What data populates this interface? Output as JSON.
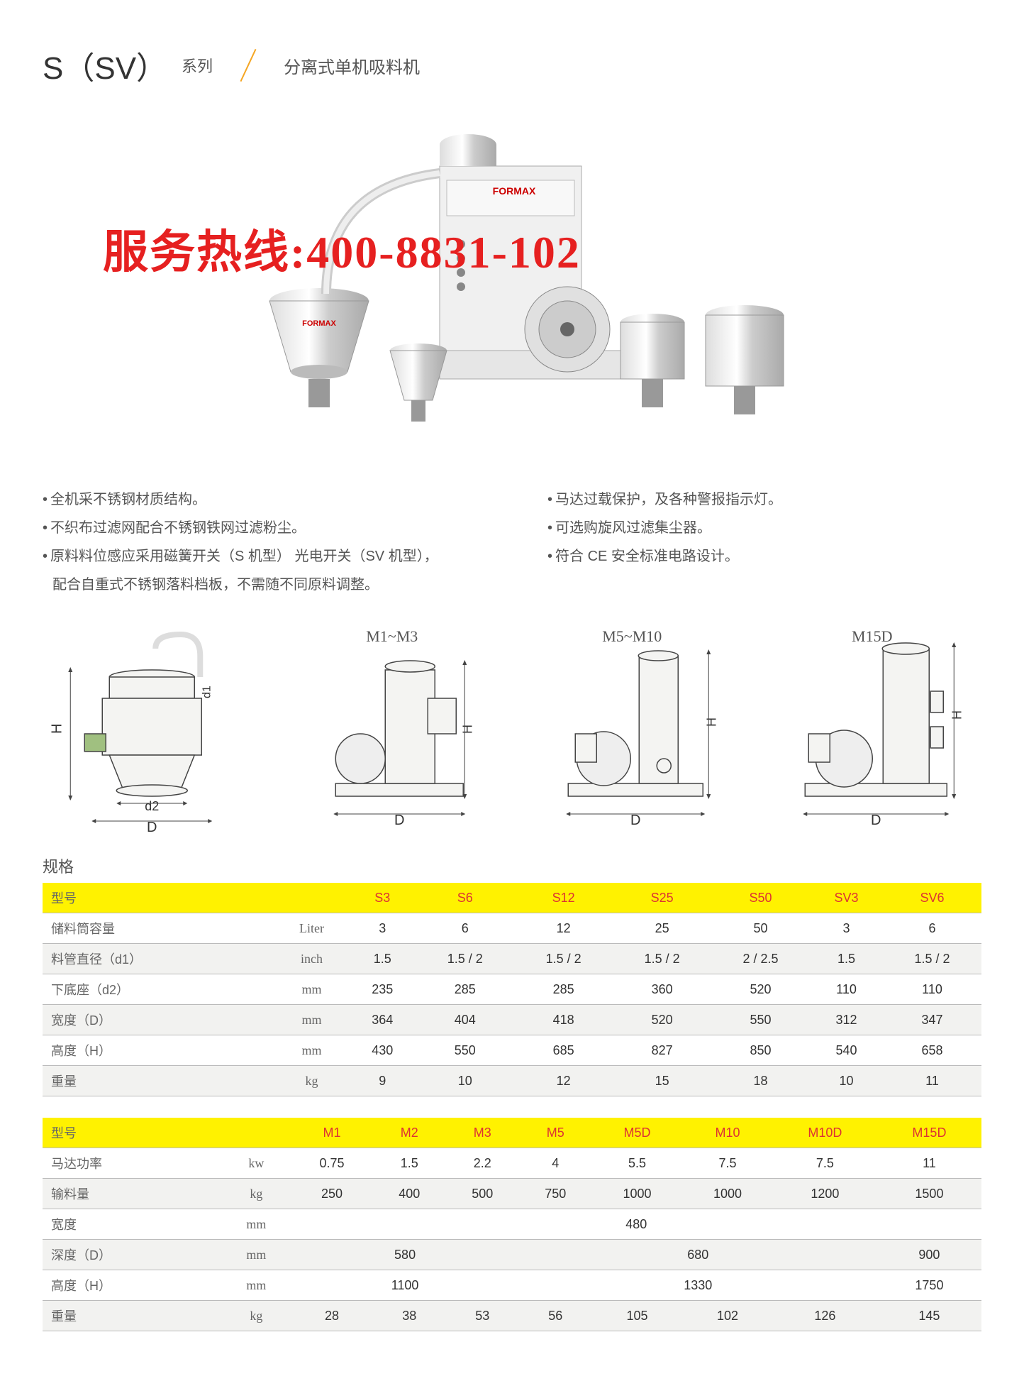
{
  "header": {
    "model_code": "S（SV）",
    "series_label": "系列",
    "product_name": "分离式单机吸料机"
  },
  "hotline": "服务热线:400-8831-102",
  "features": {
    "left": [
      "全机采不锈钢材质结构。",
      "不织布过滤网配合不锈钢铁网过滤粉尘。",
      "原料料位感应采用磁簧开关（S 机型） 光电开关（SV 机型），",
      "配合自重式不锈钢落料档板，不需随不同原料调整。"
    ],
    "right": [
      "马达过载保护，及各种警报指示灯。",
      "可选购旋风过滤集尘器。",
      "符合 CE 安全标准电路设计。"
    ]
  },
  "diagram_labels": [
    "",
    "M1~M3",
    "M5~M10",
    "M15D"
  ],
  "spec_title": "规格",
  "table1": {
    "header": [
      "型号",
      "",
      "S3",
      "S6",
      "S12",
      "S25",
      "S50",
      "SV3",
      "SV6"
    ],
    "rows": [
      [
        "储料筒容量",
        "Liter",
        "3",
        "6",
        "12",
        "25",
        "50",
        "3",
        "6"
      ],
      [
        "料管直径（d1）",
        "inch",
        "1.5",
        "1.5 / 2",
        "1.5 / 2",
        "1.5 / 2",
        "2 / 2.5",
        "1.5",
        "1.5 / 2"
      ],
      [
        "下底座（d2）",
        "mm",
        "235",
        "285",
        "285",
        "360",
        "520",
        "110",
        "110"
      ],
      [
        "宽度（D）",
        "mm",
        "364",
        "404",
        "418",
        "520",
        "550",
        "312",
        "347"
      ],
      [
        "高度（H）",
        "mm",
        "430",
        "550",
        "685",
        "827",
        "850",
        "540",
        "658"
      ],
      [
        "重量",
        "kg",
        "9",
        "10",
        "12",
        "15",
        "18",
        "10",
        "11"
      ]
    ]
  },
  "table2": {
    "header": [
      "型号",
      "",
      "M1",
      "M2",
      "M3",
      "M5",
      "M5D",
      "M10",
      "M10D",
      "M15D"
    ],
    "rows": [
      {
        "label": "马达功率",
        "unit": "kw",
        "cells": [
          "0.75",
          "1.5",
          "2.2",
          "4",
          "5.5",
          "7.5",
          "7.5",
          "11"
        ]
      },
      {
        "label": "输料量",
        "unit": "kg",
        "cells": [
          "250",
          "400",
          "500",
          "750",
          "1000",
          "1000",
          "1200",
          "1500"
        ]
      },
      {
        "label": "宽度",
        "unit": "mm",
        "spans": [
          {
            "text": "480",
            "colspan": 8
          }
        ]
      },
      {
        "label": "深度（D）",
        "unit": "mm",
        "spans": [
          {
            "text": "580",
            "colspan": 3
          },
          {
            "text": "680",
            "colspan": 4
          },
          {
            "text": "900",
            "colspan": 1
          }
        ]
      },
      {
        "label": "高度（H）",
        "unit": "mm",
        "spans": [
          {
            "text": "1100",
            "colspan": 3
          },
          {
            "text": "1330",
            "colspan": 4
          },
          {
            "text": "1750",
            "colspan": 1
          }
        ]
      },
      {
        "label": "重量",
        "unit": "kg",
        "cells": [
          "28",
          "38",
          "53",
          "56",
          "105",
          "102",
          "126",
          "145"
        ]
      }
    ]
  },
  "colors": {
    "accent_yellow": "#fff200",
    "accent_red": "#e62020",
    "header_text": "#d33",
    "text": "#555",
    "separator": "#f5a623"
  }
}
